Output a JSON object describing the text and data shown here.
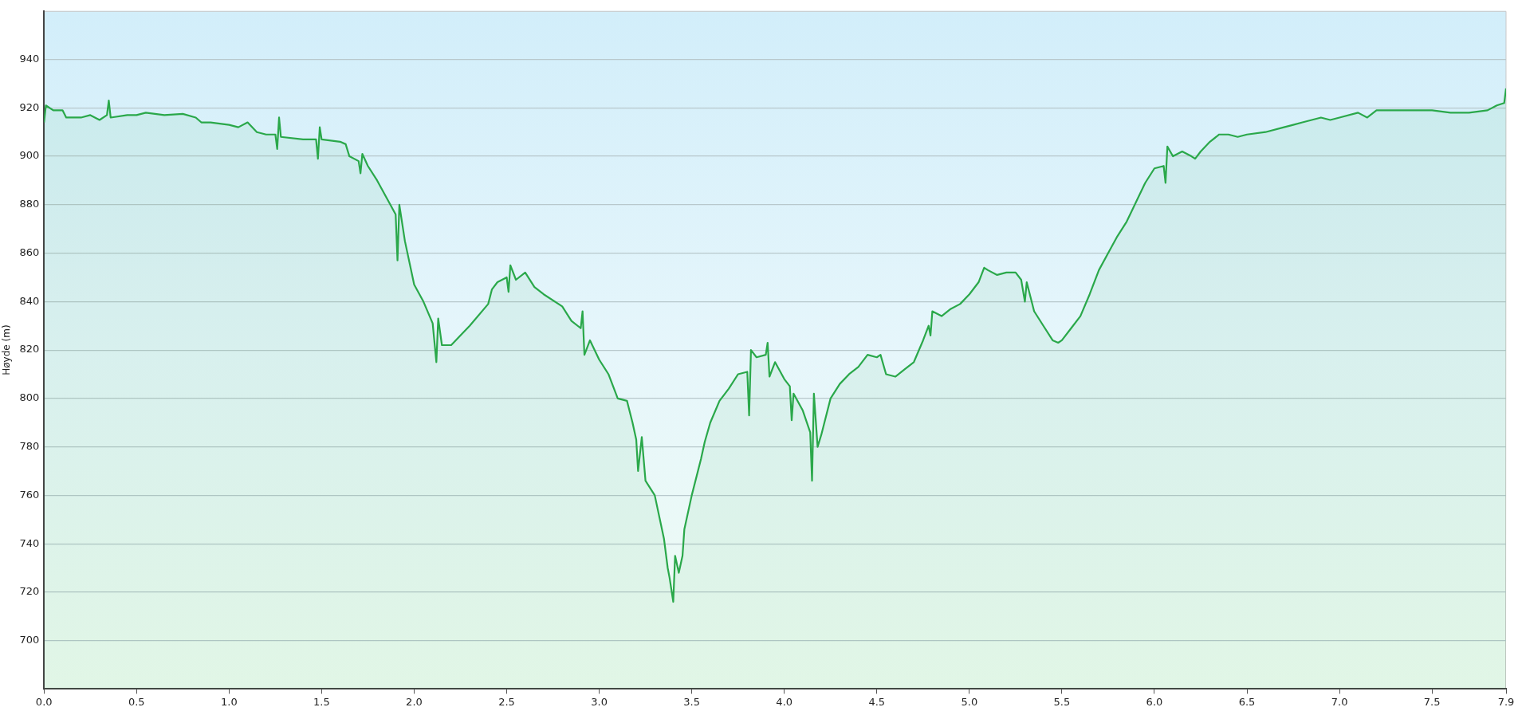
{
  "chart_data": {
    "type": "area",
    "ylabel": "Høyde (m)",
    "xlim": [
      0,
      7.9
    ],
    "ylim": [
      680,
      960
    ],
    "xticks": [
      {
        "value": 0,
        "label": "0.0"
      },
      0.5,
      {
        "value": 1,
        "label": "1.0"
      },
      1.5,
      {
        "value": 2,
        "label": "2.0"
      },
      2.5,
      {
        "value": 3,
        "label": "3.0"
      },
      3.5,
      {
        "value": 4,
        "label": "4.0"
      },
      4.5,
      {
        "value": 5,
        "label": "5.0"
      },
      5.5,
      {
        "value": 6,
        "label": "6.0"
      },
      6.5,
      {
        "value": 7,
        "label": "7.0"
      },
      7.5,
      7.9
    ],
    "yticks": [
      700,
      720,
      740,
      760,
      780,
      800,
      820,
      840,
      860,
      880,
      900,
      920,
      940
    ],
    "grid": "y",
    "legend": false,
    "marker": "none",
    "line_style": "solid",
    "series": [
      {
        "color": "#2aa84a",
        "x": [
          0,
          0.01,
          0.05,
          0.1,
          0.12,
          0.2,
          0.25,
          0.3,
          0.34,
          0.35,
          0.36,
          0.45,
          0.5,
          0.55,
          0.65,
          0.75,
          0.82,
          0.85,
          0.9,
          1.0,
          1.05,
          1.1,
          1.15,
          1.2,
          1.25,
          1.26,
          1.27,
          1.28,
          1.4,
          1.47,
          1.48,
          1.49,
          1.5,
          1.6,
          1.63,
          1.65,
          1.7,
          1.71,
          1.72,
          1.75,
          1.8,
          1.85,
          1.9,
          1.91,
          1.92,
          1.95,
          2.0,
          2.05,
          2.1,
          2.12,
          2.13,
          2.15,
          2.2,
          2.3,
          2.4,
          2.42,
          2.45,
          2.5,
          2.51,
          2.52,
          2.55,
          2.6,
          2.65,
          2.7,
          2.8,
          2.85,
          2.9,
          2.91,
          2.92,
          2.95,
          3.0,
          3.05,
          3.1,
          3.15,
          3.18,
          3.2,
          3.21,
          3.23,
          3.25,
          3.3,
          3.35,
          3.37,
          3.38,
          3.4,
          3.41,
          3.43,
          3.45,
          3.46,
          3.5,
          3.55,
          3.57,
          3.6,
          3.65,
          3.7,
          3.75,
          3.8,
          3.81,
          3.82,
          3.85,
          3.9,
          3.91,
          3.92,
          3.95,
          4.0,
          4.03,
          4.04,
          4.05,
          4.1,
          4.14,
          4.15,
          4.16,
          4.18,
          4.2,
          4.25,
          4.3,
          4.35,
          4.4,
          4.45,
          4.5,
          4.52,
          4.55,
          4.6,
          4.65,
          4.7,
          4.75,
          4.78,
          4.79,
          4.8,
          4.85,
          4.9,
          4.95,
          5.0,
          5.05,
          5.08,
          5.1,
          5.15,
          5.2,
          5.25,
          5.28,
          5.3,
          5.31,
          5.35,
          5.4,
          5.45,
          5.48,
          5.5,
          5.55,
          5.6,
          5.65,
          5.7,
          5.75,
          5.8,
          5.85,
          5.9,
          5.95,
          6.0,
          6.05,
          6.06,
          6.07,
          6.1,
          6.15,
          6.2,
          6.22,
          6.25,
          6.3,
          6.35,
          6.4,
          6.45,
          6.5,
          6.6,
          6.7,
          6.75,
          6.8,
          6.9,
          6.95,
          7.0,
          7.1,
          7.15,
          7.2,
          7.3,
          7.4,
          7.5,
          7.6,
          7.7,
          7.8,
          7.85,
          7.89,
          7.9
        ],
        "values": [
          914,
          921,
          919,
          919,
          916,
          916,
          917,
          915,
          917,
          923,
          916,
          917,
          917,
          918,
          917,
          917.5,
          916,
          914,
          914,
          913,
          912,
          914,
          910,
          909,
          909,
          903,
          916,
          908,
          907,
          907,
          899,
          912,
          907,
          906,
          905,
          900,
          898,
          893,
          901,
          896,
          890,
          883,
          876,
          857,
          880,
          865,
          847,
          840,
          831,
          815,
          833,
          822,
          822,
          830,
          839,
          845,
          848,
          850,
          844,
          855,
          849,
          852,
          846,
          843,
          838,
          832,
          829,
          836,
          818,
          824,
          816,
          810,
          800,
          799,
          790,
          783,
          770,
          784,
          766,
          760,
          742,
          730,
          726,
          716,
          735,
          728,
          735,
          746,
          760,
          775,
          782,
          790,
          799,
          804,
          810,
          811,
          793,
          820,
          817,
          818,
          823,
          809,
          815,
          808,
          805,
          791,
          802,
          795,
          786,
          766,
          802,
          780,
          785,
          800,
          806,
          810,
          813,
          818,
          817,
          818,
          810,
          809,
          812,
          815,
          824,
          830,
          826,
          836,
          834,
          837,
          839,
          843,
          848,
          854,
          853,
          851,
          852,
          852,
          849,
          840,
          848,
          836,
          830,
          824,
          823,
          824,
          829,
          834,
          843,
          853,
          860,
          867,
          873,
          881,
          889,
          895,
          896,
          889,
          904,
          900,
          902,
          900,
          899,
          902,
          906,
          909,
          909,
          908,
          909,
          910,
          912,
          913,
          914,
          916,
          915,
          916,
          918,
          916,
          919,
          919,
          919,
          919,
          918,
          918,
          919,
          921,
          922,
          928
        ]
      }
    ]
  }
}
